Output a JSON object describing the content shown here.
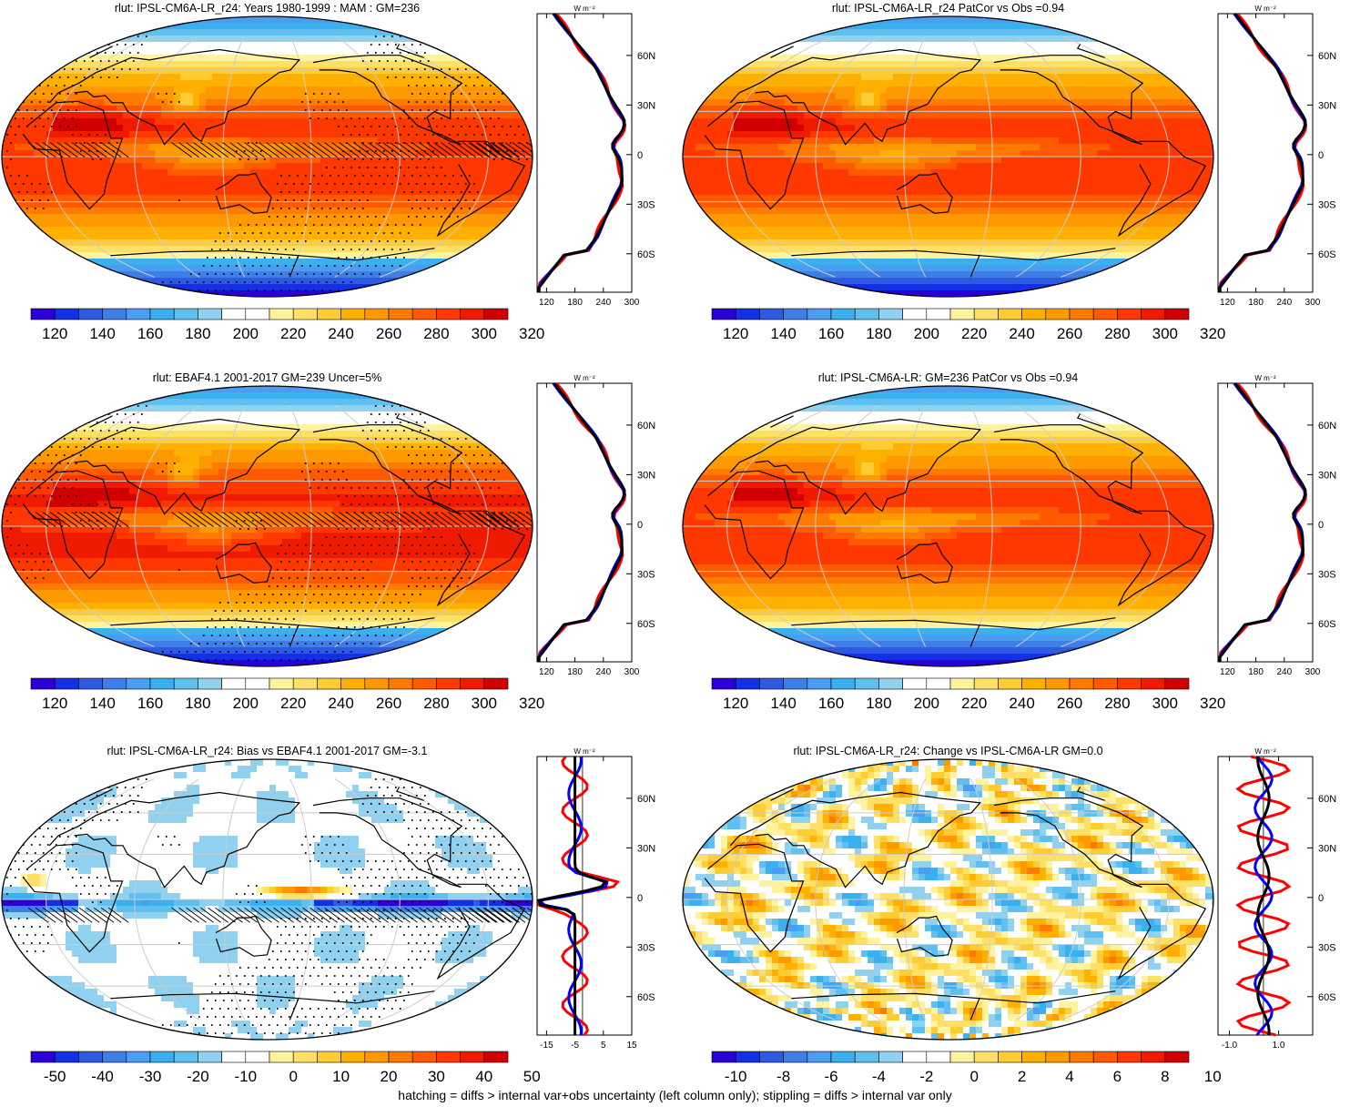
{
  "panels": [
    {
      "id": "p1",
      "title": "rlut: IPSL-CM6A-LR_r24: Years 1980-1999 : MAM : GM=236",
      "field": "abs",
      "stipple": true,
      "hatch": true,
      "colorbar": {
        "labels": [
          "120",
          "140",
          "160",
          "180",
          "200",
          "220",
          "240",
          "260",
          "280",
          "300",
          "320"
        ]
      },
      "profile": {
        "unit": "W m⁻²",
        "x_ticks": [
          "120",
          "180",
          "240",
          "300"
        ],
        "y_ticks": [
          "60N",
          "30N",
          "0",
          "30S",
          "60S"
        ],
        "series_colors": [
          "#ff0000",
          "#0000ff",
          "#000000"
        ]
      }
    },
    {
      "id": "p2",
      "title": "rlut: IPSL-CM6A-LR_r24 PatCor vs Obs =0.94",
      "field": "abs",
      "stipple": false,
      "hatch": false,
      "colorbar": {
        "labels": [
          "120",
          "140",
          "160",
          "180",
          "200",
          "220",
          "240",
          "260",
          "280",
          "300",
          "320"
        ]
      },
      "profile": {
        "unit": "W m⁻²",
        "x_ticks": [
          "120",
          "180",
          "240",
          "300"
        ],
        "y_ticks": [
          "60N",
          "30N",
          "0",
          "30S",
          "60S"
        ],
        "series_colors": [
          "#ff0000",
          "#0000ff",
          "#000000"
        ]
      }
    },
    {
      "id": "p3",
      "title": "rlut: EBAF4.1 2001-2017 GM=239 Uncer=5%",
      "field": "abs",
      "stipple": true,
      "hatch": true,
      "colorbar": {
        "labels": [
          "120",
          "140",
          "160",
          "180",
          "200",
          "220",
          "240",
          "260",
          "280",
          "300",
          "320"
        ]
      },
      "profile": {
        "unit": "W m⁻²",
        "x_ticks": [
          "120",
          "180",
          "240",
          "300"
        ],
        "y_ticks": [
          "60N",
          "30N",
          "0",
          "30S",
          "60S"
        ],
        "series_colors": [
          "#ff0000",
          "#0000ff",
          "#000000"
        ]
      }
    },
    {
      "id": "p4",
      "title": "rlut: IPSL-CM6A-LR: GM=236 PatCor vs Obs =0.94",
      "field": "abs",
      "stipple": false,
      "hatch": false,
      "colorbar": {
        "labels": [
          "120",
          "140",
          "160",
          "180",
          "200",
          "220",
          "240",
          "260",
          "280",
          "300",
          "320"
        ]
      },
      "profile": {
        "unit": "W m⁻²",
        "x_ticks": [
          "120",
          "180",
          "240",
          "300"
        ],
        "y_ticks": [
          "60N",
          "30N",
          "0",
          "30S",
          "60S"
        ],
        "series_colors": [
          "#ff0000",
          "#0000ff",
          "#000000"
        ]
      }
    },
    {
      "id": "p5",
      "title": "rlut: IPSL-CM6A-LR_r24: Bias vs EBAF4.1 2001-2017 GM=-3.1",
      "field": "bias",
      "stipple": true,
      "hatch": true,
      "colorbar": {
        "labels": [
          "-50",
          "-40",
          "-30",
          "-20",
          "-10",
          "0",
          "10",
          "20",
          "30",
          "40",
          "50"
        ]
      },
      "profile": {
        "unit": "W m⁻²",
        "x_ticks": [
          "-15",
          "-5",
          "5",
          "15"
        ],
        "y_ticks": [
          "60N",
          "30N",
          "0",
          "30S",
          "60S"
        ],
        "series_colors": [
          "#ff0000",
          "#0000ff",
          "#000000"
        ]
      }
    },
    {
      "id": "p6",
      "title": "rlut: IPSL-CM6A-LR_r24: Change vs IPSL-CM6A-LR GM=0.0",
      "field": "change",
      "stipple": false,
      "hatch": false,
      "colorbar": {
        "labels": [
          "-10",
          "-8",
          "-6",
          "-4",
          "-2",
          "0",
          "2",
          "4",
          "6",
          "8",
          "10"
        ]
      },
      "profile": {
        "unit": "W m⁻²",
        "x_ticks": [
          "-1.0",
          "1.0"
        ],
        "y_ticks": [
          "60N",
          "30N",
          "0",
          "30S",
          "60S"
        ],
        "series_colors": [
          "#ff0000",
          "#0000ff",
          "#000000"
        ]
      }
    }
  ],
  "colorbar_palette": [
    "#2a00d6",
    "#1430e6",
    "#2e5ae0",
    "#3d7fe6",
    "#4a9df0",
    "#3ab0ef",
    "#5fc0ef",
    "#8fd1ef",
    "#ffffff",
    "#ffffff",
    "#fff3a0",
    "#ffe066",
    "#ffcc33",
    "#ffb000",
    "#ff9900",
    "#ff7a00",
    "#ff5a00",
    "#ff3800",
    "#f01a00",
    "#d00000"
  ],
  "footer": "hatching = diffs > internal var+obs uncertainty (left column only); stippling = diffs > internal var only"
}
